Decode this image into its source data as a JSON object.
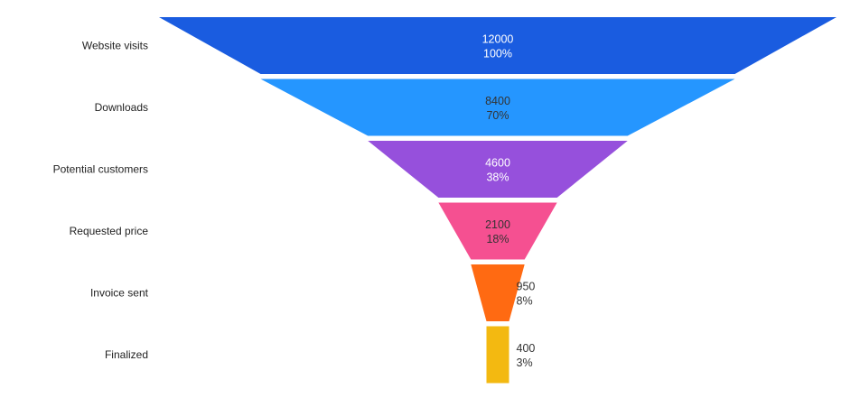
{
  "chart_data": {
    "type": "funnel",
    "title": "",
    "categories": [
      "Website visits",
      "Downloads",
      "Potential customers",
      "Requested price",
      "Invoice sent",
      "Finalized"
    ],
    "values": [
      12000,
      8400,
      4600,
      2100,
      950,
      400
    ],
    "percent_labels": [
      "100%",
      "70%",
      "38%",
      "18%",
      "8%",
      "3%"
    ],
    "colors": [
      "#1a5ce0",
      "#2596ff",
      "#9650dc",
      "#f55091",
      "#ff6a12",
      "#f3b911"
    ],
    "value_label_colors": [
      "#ffffff",
      "#333333",
      "#ffffff",
      "#333333",
      "#333333",
      "#333333"
    ]
  }
}
